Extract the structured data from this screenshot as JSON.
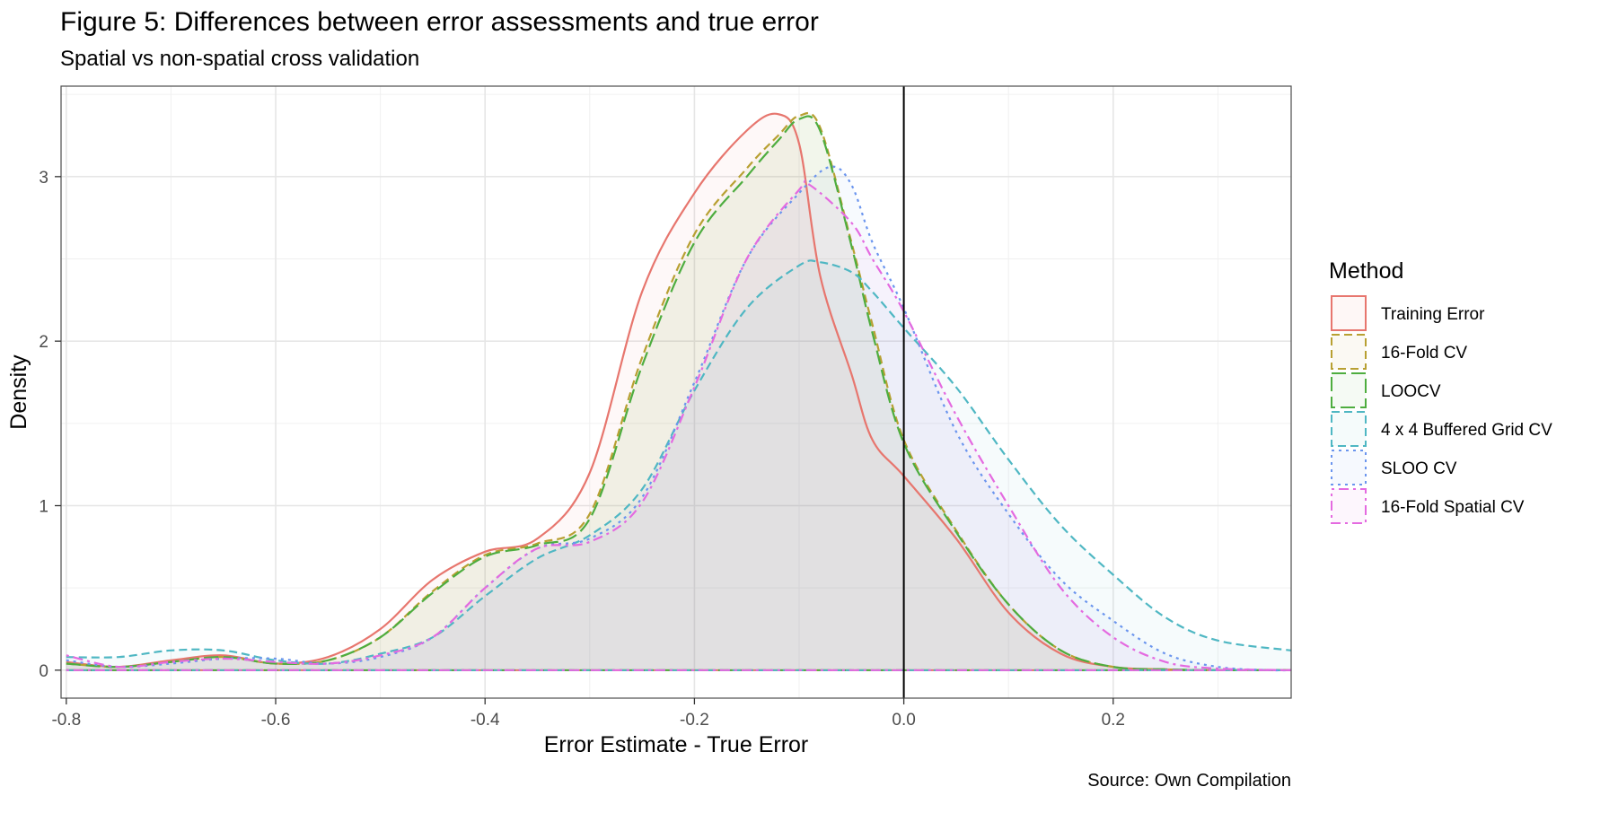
{
  "chart_data": {
    "type": "area",
    "title": "Figure 5: Differences between error assessments and true error",
    "subtitle": "Spatial vs non-spatial cross validation",
    "xlabel": "Error Estimate - True Error",
    "ylabel": "Density",
    "caption": "Source: Own Compilation",
    "xlim": [
      -0.805,
      0.37
    ],
    "ylim": [
      -0.17,
      3.55
    ],
    "x_ticks": [
      -0.8,
      -0.6,
      -0.4,
      -0.2,
      0.0,
      0.2
    ],
    "x_tick_labels": [
      "-0.8",
      "-0.6",
      "-0.4",
      "-0.2",
      "0.0",
      "0.2"
    ],
    "y_ticks": [
      0,
      1,
      2,
      3
    ],
    "y_tick_labels": [
      "0",
      "1",
      "2",
      "3"
    ],
    "vline_x": 0.0,
    "grid": true,
    "legend": {
      "title": "Method",
      "position": "right",
      "entries": [
        "Training Error",
        "16-Fold CV",
        "LOOCV",
        "4 x 4 Buffered Grid CV",
        "SLOO CV",
        "16-Fold Spatial CV"
      ]
    },
    "series": [
      {
        "name": "Training Error",
        "color": "#E7766E",
        "line": "solid",
        "x": [
          -0.8,
          -0.75,
          -0.7,
          -0.65,
          -0.6,
          -0.55,
          -0.5,
          -0.45,
          -0.4,
          -0.35,
          -0.3,
          -0.25,
          -0.2,
          -0.15,
          -0.12,
          -0.1,
          -0.08,
          -0.05,
          -0.03,
          0.0,
          0.05,
          0.1,
          0.15,
          0.2,
          0.25,
          0.3,
          0.37
        ],
        "values": [
          0.05,
          0.02,
          0.06,
          0.09,
          0.04,
          0.08,
          0.25,
          0.55,
          0.72,
          0.8,
          1.2,
          2.3,
          2.9,
          3.28,
          3.38,
          3.2,
          2.4,
          1.8,
          1.4,
          1.18,
          0.8,
          0.35,
          0.1,
          0.02,
          0.005,
          0.0,
          0.0
        ]
      },
      {
        "name": "16-Fold CV",
        "color": "#B8A032",
        "line": "dashed",
        "x": [
          -0.8,
          -0.75,
          -0.7,
          -0.65,
          -0.6,
          -0.55,
          -0.5,
          -0.45,
          -0.4,
          -0.35,
          -0.3,
          -0.25,
          -0.2,
          -0.15,
          -0.12,
          -0.1,
          -0.08,
          -0.05,
          -0.03,
          0.0,
          0.05,
          0.1,
          0.15,
          0.2,
          0.25,
          0.3,
          0.37
        ],
        "values": [
          0.04,
          0.02,
          0.05,
          0.08,
          0.04,
          0.06,
          0.2,
          0.48,
          0.7,
          0.77,
          0.95,
          1.9,
          2.65,
          3.05,
          3.25,
          3.37,
          3.3,
          2.6,
          2.1,
          1.4,
          0.85,
          0.4,
          0.12,
          0.02,
          0.005,
          0.0,
          0.0
        ]
      },
      {
        "name": "LOOCV",
        "color": "#4EAD3F",
        "line": "longdash",
        "x": [
          -0.8,
          -0.75,
          -0.7,
          -0.65,
          -0.6,
          -0.55,
          -0.5,
          -0.45,
          -0.4,
          -0.35,
          -0.3,
          -0.25,
          -0.2,
          -0.15,
          -0.12,
          -0.1,
          -0.08,
          -0.05,
          -0.03,
          0.0,
          0.05,
          0.1,
          0.15,
          0.2,
          0.25,
          0.3,
          0.37
        ],
        "values": [
          0.04,
          0.02,
          0.05,
          0.08,
          0.04,
          0.06,
          0.2,
          0.47,
          0.69,
          0.76,
          0.92,
          1.85,
          2.6,
          3.0,
          3.22,
          3.35,
          3.28,
          2.58,
          2.05,
          1.38,
          0.84,
          0.4,
          0.12,
          0.02,
          0.005,
          0.0,
          0.0
        ]
      },
      {
        "name": "4 x 4 Buffered Grid CV",
        "color": "#4FB7C3",
        "line": "dashed",
        "x": [
          -0.8,
          -0.75,
          -0.7,
          -0.65,
          -0.6,
          -0.55,
          -0.5,
          -0.45,
          -0.4,
          -0.35,
          -0.3,
          -0.25,
          -0.2,
          -0.15,
          -0.1,
          -0.08,
          -0.05,
          -0.03,
          0.0,
          0.05,
          0.1,
          0.15,
          0.2,
          0.25,
          0.3,
          0.37
        ],
        "values": [
          0.08,
          0.08,
          0.12,
          0.12,
          0.06,
          0.04,
          0.1,
          0.2,
          0.45,
          0.68,
          0.82,
          1.1,
          1.7,
          2.2,
          2.46,
          2.48,
          2.42,
          2.3,
          2.08,
          1.72,
          1.28,
          0.88,
          0.58,
          0.32,
          0.18,
          0.12
        ]
      },
      {
        "name": "SLOO CV",
        "color": "#6B95EE",
        "line": "dotted",
        "x": [
          -0.8,
          -0.75,
          -0.7,
          -0.65,
          -0.6,
          -0.55,
          -0.5,
          -0.45,
          -0.4,
          -0.35,
          -0.3,
          -0.25,
          -0.2,
          -0.15,
          -0.1,
          -0.07,
          -0.05,
          -0.03,
          0.0,
          0.05,
          0.1,
          0.15,
          0.2,
          0.25,
          0.3,
          0.35,
          0.37
        ],
        "values": [
          0.06,
          0.02,
          0.04,
          0.07,
          0.07,
          0.04,
          0.08,
          0.2,
          0.5,
          0.74,
          0.8,
          1.05,
          1.75,
          2.5,
          2.9,
          3.06,
          2.95,
          2.6,
          2.2,
          1.45,
          0.95,
          0.55,
          0.3,
          0.1,
          0.02,
          0.0,
          0.0
        ]
      },
      {
        "name": "16-Fold Spatial CV",
        "color": "#E46AE0",
        "line": "dotdash",
        "x": [
          -0.8,
          -0.75,
          -0.7,
          -0.65,
          -0.6,
          -0.55,
          -0.5,
          -0.45,
          -0.4,
          -0.35,
          -0.3,
          -0.25,
          -0.2,
          -0.15,
          -0.1,
          -0.09,
          -0.05,
          -0.03,
          0.0,
          0.05,
          0.1,
          0.15,
          0.2,
          0.25,
          0.3,
          0.37
        ],
        "values": [
          0.09,
          0.02,
          0.05,
          0.07,
          0.05,
          0.04,
          0.09,
          0.2,
          0.5,
          0.74,
          0.78,
          1.02,
          1.72,
          2.5,
          2.92,
          2.95,
          2.72,
          2.5,
          2.18,
          1.55,
          1.0,
          0.5,
          0.2,
          0.05,
          0.01,
          0.0
        ]
      }
    ]
  }
}
